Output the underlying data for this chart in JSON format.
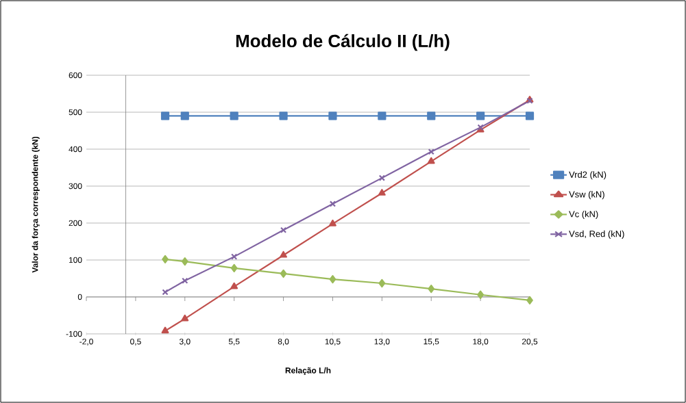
{
  "chart_data": {
    "type": "line",
    "title": "Modelo de Cálculo II (L/h)",
    "xlabel": "Relação  L/h",
    "ylabel": "Valor da força correspondente (kN)",
    "x": [
      2,
      3,
      5.5,
      8,
      10.5,
      13,
      15.5,
      18,
      20.5
    ],
    "series": [
      {
        "name": "Vrd2 (kN)",
        "color": "#4f81bd",
        "marker": "square",
        "values": [
          490,
          490,
          490,
          490,
          490,
          490,
          490,
          490,
          490
        ]
      },
      {
        "name": "Vsw (kN)",
        "color": "#c0504d",
        "marker": "triangle",
        "values": [
          -92,
          -59,
          28,
          113,
          198,
          281,
          367,
          452,
          533
        ]
      },
      {
        "name": "Vc (kN)",
        "color": "#9bbb59",
        "marker": "diamond",
        "values": [
          102,
          96,
          78,
          63,
          48,
          37,
          22,
          6,
          -9
        ]
      },
      {
        "name": "Vsd, Red (kN)",
        "color": "#8064a2",
        "marker": "cross",
        "values": [
          13,
          44,
          109,
          181,
          252,
          322,
          393,
          459,
          531
        ]
      }
    ],
    "xlim": [
      -2,
      20.5
    ],
    "xticks": [
      {
        "value": -2,
        "label": "-2,0"
      },
      {
        "value": 0.5,
        "label": "0,5"
      },
      {
        "value": 3,
        "label": "3,0"
      },
      {
        "value": 5.5,
        "label": "5,5"
      },
      {
        "value": 8,
        "label": "8,0"
      },
      {
        "value": 10.5,
        "label": "10,5"
      },
      {
        "value": 13,
        "label": "13,0"
      },
      {
        "value": 15.5,
        "label": "15,5"
      },
      {
        "value": 18,
        "label": "18,0"
      },
      {
        "value": 20.5,
        "label": "20,5"
      }
    ],
    "ylim": [
      -100,
      600
    ],
    "yticks": [
      -100,
      0,
      100,
      200,
      300,
      400,
      500,
      600
    ],
    "grid": "y",
    "legend": "right",
    "line_style": "solid"
  }
}
